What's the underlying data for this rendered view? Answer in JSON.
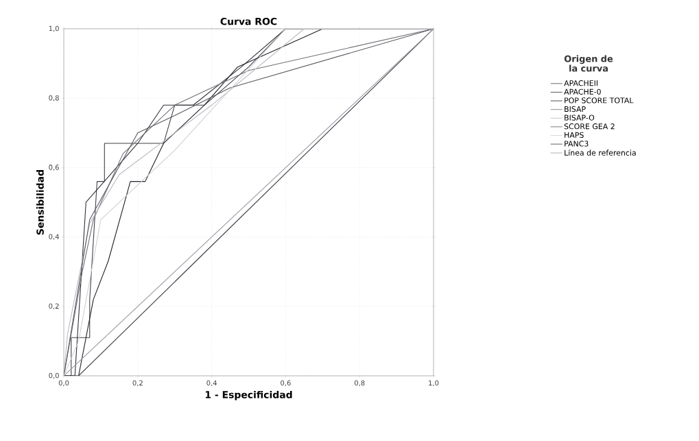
{
  "chart_data": {
    "type": "line",
    "title": "Curva ROC",
    "xlabel": "1 - Especificidad",
    "ylabel": "Sensibilidad",
    "legend_title": "Origen de la curva",
    "legend": "right",
    "grid": true,
    "marker": "none",
    "line_style": "solid",
    "xlim": [
      0,
      1
    ],
    "ylim": [
      0,
      1
    ],
    "xticks": [
      {
        "value": 0,
        "label": "0,0"
      },
      {
        "value": 0.2,
        "label": "0,2"
      },
      {
        "value": 0.4,
        "label": "0,4"
      },
      {
        "value": 0.6,
        "label": "0,6"
      },
      {
        "value": 0.8,
        "label": "0,8"
      },
      {
        "value": 1,
        "label": "1,0"
      }
    ],
    "yticks": [
      {
        "value": 0,
        "label": "0,0"
      },
      {
        "value": 0.2,
        "label": "0,2"
      },
      {
        "value": 0.4,
        "label": "0,4"
      },
      {
        "value": 0.6,
        "label": "0,6"
      },
      {
        "value": 0.8,
        "label": "0,8"
      },
      {
        "value": 1,
        "label": "1,0"
      }
    ],
    "series": [
      {
        "name": "APACHEII",
        "color": "#404048",
        "x": [
          0,
          0.02,
          0.02,
          0.07,
          0.07,
          0.09,
          0.11,
          0.11,
          0.27,
          0.3,
          0.38,
          0.5,
          0.6,
          1
        ],
        "values": [
          0,
          0,
          0.11,
          0.11,
          0.22,
          0.56,
          0.56,
          0.67,
          0.67,
          0.78,
          0.78,
          0.89,
          1,
          1
        ]
      },
      {
        "name": "APACHE-0",
        "color": "#303038",
        "x": [
          0,
          0.03,
          0.06,
          0.2,
          0.27,
          0.35,
          0.48,
          0.6,
          1
        ],
        "values": [
          0,
          0,
          0.5,
          0.67,
          0.78,
          0.78,
          0.89,
          1,
          1
        ]
      },
      {
        "name": "POP SCORE TOTAL",
        "color": "#202028",
        "x": [
          0,
          0.04,
          0.08,
          0.12,
          0.18,
          0.22,
          0.27,
          0.38,
          0.47,
          0.7,
          1
        ],
        "values": [
          0,
          0,
          0.22,
          0.33,
          0.56,
          0.56,
          0.67,
          0.78,
          0.89,
          1,
          1
        ]
      },
      {
        "name": "BISAP",
        "color": "#707078",
        "x": [
          0,
          0.05,
          0.08,
          0.16,
          0.3,
          0.5,
          1
        ],
        "values": [
          0,
          0.3,
          0.45,
          0.64,
          0.78,
          0.88,
          1
        ]
      },
      {
        "name": "BISAP-O",
        "color": "#b8b8c0",
        "x": [
          0,
          0.01,
          0.07,
          0.15,
          0.4,
          0.65,
          1
        ],
        "values": [
          0,
          0.12,
          0.44,
          0.58,
          0.78,
          1,
          1
        ]
      },
      {
        "name": "SCORE GEA 2",
        "color": "#585860",
        "x": [
          0,
          0.07,
          0.2,
          0.3,
          0.45,
          1
        ],
        "values": [
          0,
          0.45,
          0.7,
          0.75,
          0.83,
          1
        ]
      },
      {
        "name": "HAPS",
        "color": "#d0d0d4",
        "x": [
          0,
          0.04,
          0.1,
          0.3,
          0.6,
          1
        ],
        "values": [
          0,
          0.1,
          0.45,
          0.65,
          1,
          1
        ]
      },
      {
        "name": "PANC3",
        "color": "#383840",
        "x": [
          0.04,
          1
        ],
        "values": [
          0,
          1
        ]
      },
      {
        "name": "Línea de referencia",
        "color": "#9a9aa4",
        "x": [
          0,
          1
        ],
        "values": [
          0,
          1
        ]
      }
    ]
  }
}
